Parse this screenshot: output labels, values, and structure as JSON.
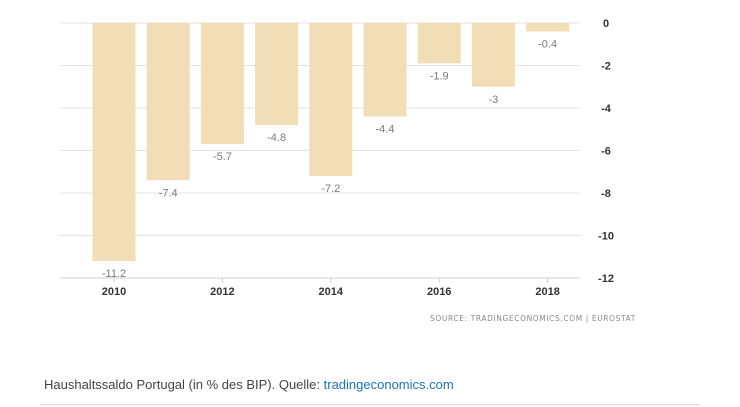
{
  "chart_data": {
    "type": "bar",
    "x": [
      2010,
      2011,
      2012,
      2013,
      2014,
      2015,
      2016,
      2017,
      2018
    ],
    "values": [
      -11.2,
      -7.4,
      -5.7,
      -4.8,
      -7.2,
      -4.4,
      -1.9,
      -3,
      -0.4
    ],
    "data_labels": [
      "-11.2",
      "-7.4",
      "-5.7",
      "-4.8",
      "-7.2",
      "-4.4",
      "-1.9",
      "-3",
      "-0.4"
    ],
    "x_tick_labels": [
      "2010",
      "2012",
      "2014",
      "2016",
      "2018"
    ],
    "y_ticks": [
      0,
      -2,
      -4,
      -6,
      -8,
      -10,
      -12
    ],
    "y_tick_labels": [
      "0",
      "-2",
      "-4",
      "-6",
      "-8",
      "-10",
      "-12"
    ],
    "ylim": [
      -12,
      0
    ],
    "y_axis_side": "right",
    "grid": true,
    "bar_color": "#f2deb6",
    "grid_color": "#e3e3e3",
    "source": "SOURCE: TRADINGECONOMICS.COM | EUROSTAT"
  },
  "caption": {
    "text": "Haushaltssaldo Portugal (in % des BIP). Quelle: ",
    "link": "tradingeconomics.com",
    "link_color": "#1a73b8"
  }
}
